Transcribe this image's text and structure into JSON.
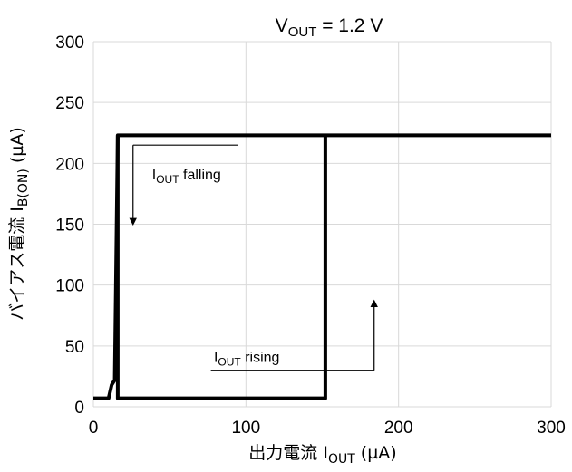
{
  "chart_data": {
    "type": "line",
    "title": {
      "main": "V",
      "sub": "OUT",
      "rest": " = 1.2 V"
    },
    "xlabel": {
      "main": "出力電流 I",
      "sub": "OUT",
      "rest": " (µA)"
    },
    "ylabel": {
      "main": "バイアス電流 I",
      "sub": "B(ON)",
      "rest": " (µA)"
    },
    "xlim": [
      0,
      300
    ],
    "ylim": [
      0,
      300
    ],
    "xticks": [
      "0",
      "100",
      "200",
      "300"
    ],
    "yticks": [
      "0",
      "50",
      "100",
      "150",
      "200",
      "250",
      "300"
    ],
    "grid": true,
    "series": [
      {
        "color": "#000000",
        "x": [
          0,
          10,
          12,
          14,
          16,
          152,
          152,
          300
        ],
        "y": [
          7,
          7,
          18,
          22,
          223,
          223,
          223,
          223
        ]
      },
      {
        "color": "#000000",
        "x": [
          16,
          16,
          152,
          152
        ],
        "y": [
          223,
          7,
          7,
          223
        ]
      }
    ],
    "annotations": [
      {
        "main": "I",
        "sub": "OUT",
        "rest": " falling",
        "arrow": "down",
        "x": 26,
        "y": 215,
        "toY": 152
      },
      {
        "main": "I",
        "sub": "OUT",
        "rest": " rising",
        "arrow": "up",
        "x": 184,
        "y": 30,
        "toY": 85
      }
    ]
  }
}
